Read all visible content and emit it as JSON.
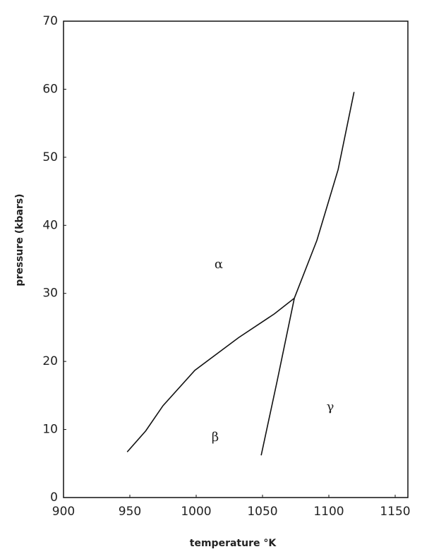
{
  "chart_data": {
    "type": "line",
    "x_label": "temperature °K",
    "y_label": "pressure   (kbars)",
    "xlim": [
      900,
      1150
    ],
    "xticks": [
      900,
      950,
      1000,
      1050,
      1100,
      1150
    ],
    "ylim": [
      0,
      70
    ],
    "yticks": [
      0,
      10,
      20,
      30,
      40,
      50,
      60,
      70
    ],
    "grid": false,
    "series": [
      {
        "color": "#111111",
        "x": [
          948,
          962,
          975,
          999,
          1032,
          1059,
          1074
        ],
        "values": [
          6.7,
          9.8,
          13.5,
          18.7,
          23.5,
          27,
          29.3
        ]
      },
      {
        "color": "#111111",
        "x": [
          1049,
          1061,
          1074
        ],
        "values": [
          6.2,
          17.1,
          29.3
        ]
      },
      {
        "color": "#111111",
        "x": [
          1074,
          1091,
          1107,
          1119
        ],
        "values": [
          29.3,
          37.8,
          48.2,
          59.6
        ]
      }
    ],
    "annotations": [
      "α",
      "β",
      "γ"
    ]
  }
}
